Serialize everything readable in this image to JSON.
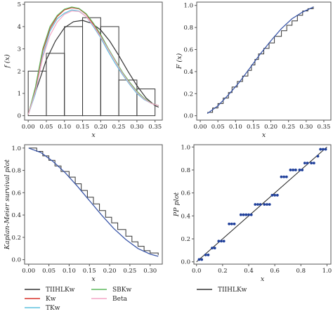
{
  "chart_data": [
    {
      "type": "histogram-density",
      "xlabel": "x",
      "ylabel": "f (x)",
      "xlim": [
        -0.01,
        0.37
      ],
      "ylim": [
        -0.2,
        5.1
      ],
      "xticks": [
        "0.00",
        "0.05",
        "0.10",
        "0.15",
        "0.20",
        "0.25",
        "0.30",
        "0.35"
      ],
      "yticks": [
        "0",
        "1",
        "2",
        "3",
        "4",
        "5"
      ],
      "bins": [
        {
          "x0": 0.0,
          "x1": 0.05,
          "h": 2.0
        },
        {
          "x0": 0.05,
          "x1": 0.1,
          "h": 2.8
        },
        {
          "x0": 0.1,
          "x1": 0.15,
          "h": 4.0
        },
        {
          "x0": 0.15,
          "x1": 0.2,
          "h": 4.4
        },
        {
          "x0": 0.2,
          "x1": 0.25,
          "h": 4.0
        },
        {
          "x0": 0.25,
          "x1": 0.3,
          "h": 1.6
        },
        {
          "x0": 0.3,
          "x1": 0.35,
          "h": 1.2
        }
      ],
      "series": [
        {
          "name": "TIIHLKw",
          "color": "#333333",
          "x": [
            0.0,
            0.025,
            0.05,
            0.075,
            0.1,
            0.125,
            0.15,
            0.175,
            0.2,
            0.225,
            0.25,
            0.275,
            0.3,
            0.325,
            0.35,
            0.36
          ],
          "y": [
            0.05,
            1.3,
            2.5,
            3.35,
            3.95,
            4.22,
            4.28,
            4.15,
            3.85,
            3.35,
            2.7,
            2.0,
            1.35,
            0.8,
            0.45,
            0.38
          ]
        },
        {
          "name": "Kw",
          "color": "#d9342b",
          "x": [
            0.0,
            0.02,
            0.04,
            0.06,
            0.08,
            0.1,
            0.12,
            0.14,
            0.16,
            0.18,
            0.2,
            0.22,
            0.24,
            0.26,
            0.28,
            0.3,
            0.32,
            0.34,
            0.36
          ],
          "y": [
            0.05,
            1.2,
            2.9,
            3.9,
            4.45,
            4.75,
            4.85,
            4.8,
            4.55,
            4.1,
            3.6,
            3.0,
            2.45,
            1.9,
            1.45,
            1.05,
            0.75,
            0.55,
            0.45
          ]
        },
        {
          "name": "TKw",
          "color": "#5bc0de",
          "x": [
            0.0,
            0.02,
            0.04,
            0.06,
            0.08,
            0.1,
            0.12,
            0.14,
            0.16,
            0.18,
            0.2,
            0.22,
            0.24,
            0.26,
            0.28,
            0.3,
            0.32,
            0.34,
            0.36
          ],
          "y": [
            0.05,
            1.0,
            2.7,
            3.8,
            4.35,
            4.6,
            4.75,
            4.7,
            4.45,
            4.0,
            3.5,
            2.9,
            2.35,
            1.85,
            1.4,
            1.0,
            0.72,
            0.55,
            0.45
          ]
        },
        {
          "name": "SBKw",
          "color": "#5cb85c",
          "x": [
            0.0,
            0.02,
            0.04,
            0.06,
            0.08,
            0.1,
            0.12,
            0.14,
            0.16,
            0.18,
            0.2,
            0.22,
            0.24,
            0.26,
            0.28,
            0.3,
            0.32,
            0.34,
            0.36
          ],
          "y": [
            0.05,
            1.3,
            3.0,
            4.0,
            4.5,
            4.78,
            4.88,
            4.82,
            4.58,
            4.15,
            3.65,
            3.05,
            2.5,
            1.95,
            1.5,
            1.1,
            0.78,
            0.56,
            0.45
          ]
        },
        {
          "name": "Beta",
          "color": "#f4a6c6",
          "x": [
            0.0,
            0.02,
            0.04,
            0.06,
            0.08,
            0.1,
            0.12,
            0.14,
            0.16,
            0.18,
            0.2,
            0.22,
            0.24,
            0.26,
            0.28,
            0.3,
            0.32,
            0.34,
            0.36
          ],
          "y": [
            0.05,
            1.1,
            2.6,
            3.6,
            4.2,
            4.55,
            4.7,
            4.68,
            4.45,
            4.05,
            3.55,
            3.0,
            2.45,
            1.9,
            1.45,
            1.05,
            0.75,
            0.55,
            0.45
          ]
        }
      ]
    },
    {
      "type": "line",
      "xlabel": "x",
      "ylabel": "F (x)",
      "xlim": [
        -0.01,
        0.37
      ],
      "ylim": [
        -0.04,
        1.03
      ],
      "xticks": [
        "0.00",
        "0.05",
        "0.10",
        "0.15",
        "0.20",
        "0.25",
        "0.30",
        "0.35"
      ],
      "yticks": [
        "0.0",
        "0.2",
        "0.4",
        "0.6",
        "0.8",
        "1.0"
      ],
      "ecdf": {
        "x": [
          0.02,
          0.035,
          0.05,
          0.065,
          0.08,
          0.09,
          0.105,
          0.12,
          0.135,
          0.145,
          0.155,
          0.165,
          0.18,
          0.195,
          0.21,
          0.23,
          0.245,
          0.26,
          0.275,
          0.29,
          0.305,
          0.32
        ],
        "y": [
          0.03,
          0.07,
          0.11,
          0.16,
          0.21,
          0.26,
          0.31,
          0.36,
          0.41,
          0.46,
          0.51,
          0.56,
          0.61,
          0.66,
          0.72,
          0.77,
          0.82,
          0.86,
          0.91,
          0.95,
          0.97,
          0.99
        ]
      },
      "fitted": {
        "x": [
          0.02,
          0.05,
          0.08,
          0.11,
          0.14,
          0.17,
          0.2,
          0.23,
          0.26,
          0.29,
          0.32
        ],
        "y": [
          0.02,
          0.09,
          0.19,
          0.3,
          0.43,
          0.56,
          0.68,
          0.79,
          0.88,
          0.94,
          0.985
        ]
      }
    },
    {
      "type": "line",
      "xlabel": "x",
      "ylabel": "Kaplan-Meier survival plot",
      "xlim": [
        -0.01,
        0.33
      ],
      "ylim": [
        -0.04,
        1.03
      ],
      "xticks": [
        "0.00",
        "0.05",
        "0.10",
        "0.15",
        "0.20",
        "0.25",
        "0.30"
      ],
      "yticks": [
        "0.0",
        "0.2",
        "0.4",
        "0.6",
        "0.8",
        "1.0"
      ],
      "km": {
        "x": [
          0.0,
          0.02,
          0.035,
          0.05,
          0.065,
          0.08,
          0.1,
          0.115,
          0.13,
          0.145,
          0.16,
          0.175,
          0.19,
          0.205,
          0.22,
          0.24,
          0.255,
          0.27,
          0.285,
          0.3,
          0.32
        ],
        "y": [
          1.0,
          0.97,
          0.93,
          0.89,
          0.84,
          0.79,
          0.74,
          0.68,
          0.62,
          0.56,
          0.5,
          0.44,
          0.38,
          0.33,
          0.27,
          0.21,
          0.16,
          0.12,
          0.08,
          0.06,
          0.04
        ]
      },
      "fitted": {
        "x": [
          0.0,
          0.03,
          0.06,
          0.09,
          0.12,
          0.15,
          0.18,
          0.21,
          0.24,
          0.27,
          0.3,
          0.32
        ],
        "y": [
          1.0,
          0.96,
          0.88,
          0.78,
          0.66,
          0.53,
          0.4,
          0.28,
          0.18,
          0.1,
          0.05,
          0.03
        ]
      }
    },
    {
      "type": "scatter",
      "xlabel": "x",
      "ylabel": "PP plot",
      "xlim": [
        -0.02,
        1.03
      ],
      "ylim": [
        -0.02,
        1.02
      ],
      "xticks": [
        "0.0",
        "0.2",
        "0.4",
        "0.6",
        "0.8",
        "1.0"
      ],
      "yticks": [
        "0.0",
        "0.2",
        "0.4",
        "0.6",
        "0.8",
        "1.0"
      ],
      "points": {
        "x": [
          0.02,
          0.04,
          0.07,
          0.09,
          0.12,
          0.14,
          0.17,
          0.19,
          0.21,
          0.25,
          0.27,
          0.29,
          0.34,
          0.36,
          0.38,
          0.4,
          0.42,
          0.45,
          0.47,
          0.49,
          0.52,
          0.54,
          0.56,
          0.58,
          0.6,
          0.62,
          0.65,
          0.67,
          0.69,
          0.72,
          0.74,
          0.76,
          0.79,
          0.81,
          0.83,
          0.85,
          0.88,
          0.9,
          0.93,
          0.95,
          0.97,
          0.99
        ],
        "y": [
          0.02,
          0.02,
          0.06,
          0.06,
          0.12,
          0.12,
          0.18,
          0.18,
          0.18,
          0.33,
          0.33,
          0.33,
          0.41,
          0.41,
          0.41,
          0.41,
          0.41,
          0.5,
          0.5,
          0.5,
          0.5,
          0.5,
          0.5,
          0.58,
          0.58,
          0.58,
          0.74,
          0.74,
          0.74,
          0.8,
          0.8,
          0.8,
          0.8,
          0.8,
          0.86,
          0.86,
          0.86,
          0.86,
          0.92,
          0.98,
          0.98,
          0.98
        ]
      },
      "line": {
        "x": [
          0.0,
          1.0
        ],
        "y": [
          0.0,
          1.0
        ]
      }
    }
  ],
  "legend_left": [
    {
      "name": "TIIHLKw",
      "color": "#333333"
    },
    {
      "name": "SBKw",
      "color": "#5cb85c"
    },
    {
      "name": "Kw",
      "color": "#d9342b"
    },
    {
      "name": "Beta",
      "color": "#f4a6c6"
    },
    {
      "name": "TKw",
      "color": "#5bc0de"
    }
  ],
  "legend_right": [
    {
      "name": "TIIHLKw",
      "color": "#333333"
    }
  ]
}
